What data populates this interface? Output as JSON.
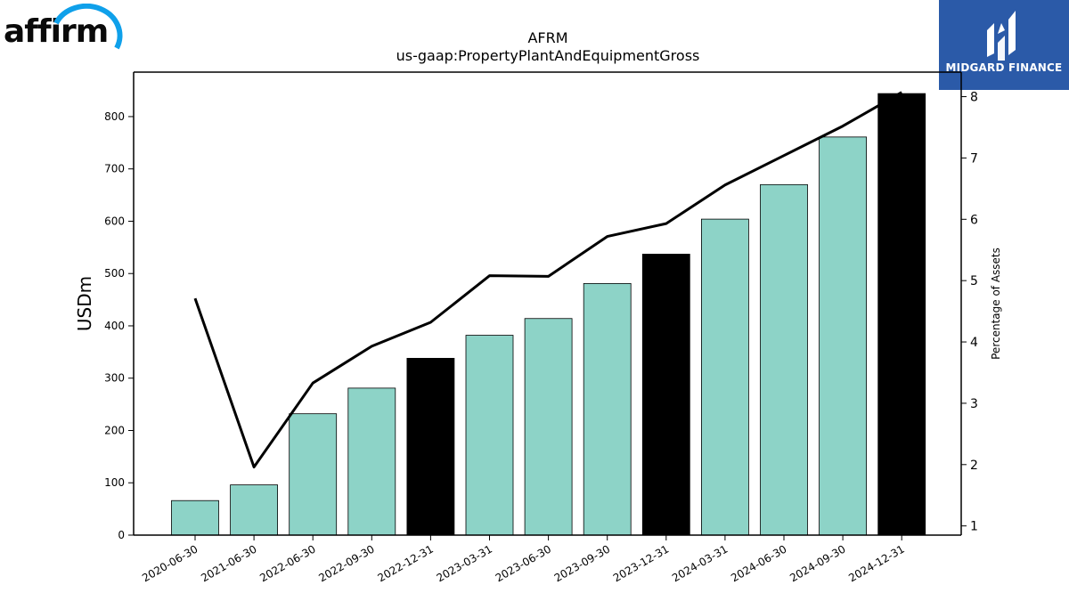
{
  "logos": {
    "left": {
      "text": "affirm",
      "icon": "affirm-arc-icon",
      "color": "#0fa0ea"
    },
    "right": {
      "text": "MIDGARD FINANCE",
      "icon": "midgard-mark-icon",
      "background": "#2b5aa8"
    }
  },
  "chart_data": {
    "type": "bar",
    "title": "AFRM",
    "subtitle": "us-gaap:PropertyPlantAndEquipmentGross",
    "ylabel": "USDm",
    "y2label": "Percentage of Assets",
    "ylim": [
      0,
      885
    ],
    "y2lim": [
      0.85,
      8.4
    ],
    "yticks": [
      0,
      100,
      200,
      300,
      400,
      500,
      600,
      700,
      800
    ],
    "y2ticks": [
      1,
      2,
      3,
      4,
      5,
      6,
      7,
      8
    ],
    "grid": false,
    "categories": [
      "2020-06-30",
      "2021-06-30",
      "2022-06-30",
      "2022-09-30",
      "2022-12-31",
      "2023-03-31",
      "2023-06-30",
      "2023-09-30",
      "2023-12-31",
      "2024-03-31",
      "2024-06-30",
      "2024-09-30",
      "2024-12-31"
    ],
    "series": [
      {
        "type": "bar",
        "axis": "left",
        "values": [
          66,
          96,
          232,
          281,
          338,
          382,
          414,
          481,
          537,
          604,
          670,
          761,
          844
        ],
        "colors": [
          "#8dd3c7",
          "#8dd3c7",
          "#8dd3c7",
          "#8dd3c7",
          "#000000",
          "#8dd3c7",
          "#8dd3c7",
          "#8dd3c7",
          "#000000",
          "#8dd3c7",
          "#8dd3c7",
          "#8dd3c7",
          "#000000"
        ]
      },
      {
        "type": "line",
        "axis": "right",
        "color": "#000000",
        "values": [
          4.71,
          1.96,
          3.33,
          3.93,
          4.32,
          5.08,
          5.07,
          5.72,
          5.93,
          6.56,
          7.04,
          7.52,
          8.07
        ]
      }
    ]
  }
}
